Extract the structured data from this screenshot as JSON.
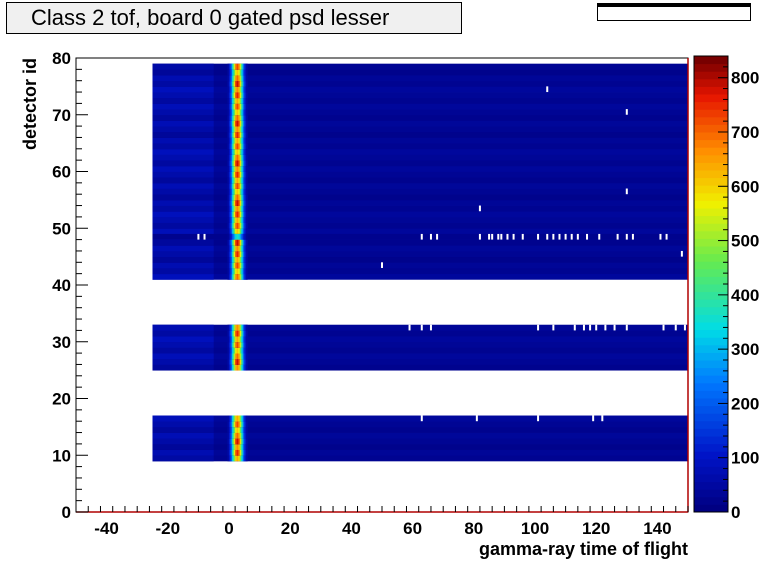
{
  "title": "Class 2 tof, board 0 gated psd lesser",
  "stats_box": {
    "visible": true
  },
  "chart_data": {
    "type": "heatmap",
    "title": "Class 2 tof, board 0 gated psd lesser",
    "xlabel": "gamma-ray time of flight",
    "ylabel": "detector id",
    "xlim": [
      -50,
      150
    ],
    "ylim": [
      0,
      80
    ],
    "x_ticks": [
      -40,
      -20,
      0,
      20,
      40,
      60,
      80,
      100,
      120,
      140
    ],
    "y_ticks": [
      0,
      10,
      20,
      30,
      40,
      50,
      60,
      70,
      80
    ],
    "colorbar": {
      "min": 0,
      "max": 840,
      "ticks": [
        0,
        100,
        200,
        300,
        400,
        500,
        600,
        700,
        800
      ],
      "palette": "rainbow"
    },
    "populated_detector_ranges": [
      [
        9,
        17
      ],
      [
        25,
        33
      ],
      [
        41,
        79
      ]
    ],
    "populated_x_range": [
      -25,
      150
    ],
    "background_level": 15,
    "gamma_peak": {
      "x_center": 2.5,
      "sigma": 1.3,
      "peak_counts": 820
    },
    "isolated_points": [
      {
        "x": 104,
        "y": 74.5
      },
      {
        "x": 130,
        "y": 70.5
      },
      {
        "x": 130,
        "y": 56.5
      },
      {
        "x": 82,
        "y": 53.5
      },
      {
        "x": 50,
        "y": 43.5
      },
      {
        "x": 148,
        "y": 45.5
      },
      {
        "x": 63,
        "y": 16.5
      },
      {
        "x": 81,
        "y": 16.5
      },
      {
        "x": 101,
        "y": 16.5
      },
      {
        "x": 119,
        "y": 16.5
      },
      {
        "x": 122,
        "y": 16.5
      }
    ],
    "sparse_rows": [
      {
        "y": 48.5,
        "x": [
          -10,
          -8,
          63,
          66,
          68,
          82,
          85,
          86,
          88,
          89,
          91,
          93,
          96,
          101,
          104,
          106,
          108,
          110,
          112,
          114,
          117,
          121,
          127,
          130,
          132,
          141,
          143
        ]
      },
      {
        "y": 32.5,
        "x": [
          59,
          63,
          66,
          101,
          106,
          113,
          116,
          118,
          120,
          123,
          126,
          130,
          142,
          146,
          149
        ]
      }
    ]
  }
}
